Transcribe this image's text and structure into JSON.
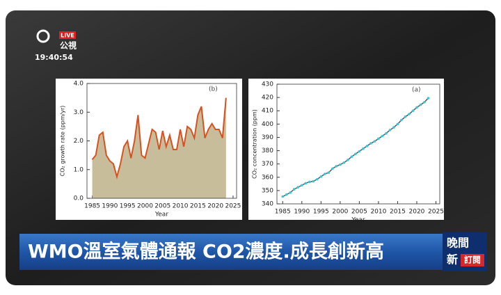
{
  "broadcast": {
    "channel": "公視",
    "live": "LIVE",
    "time": "19:40:54",
    "headline": "WMO溫室氣體通報  CO2濃度.成長創新高",
    "program_top": "晚間",
    "program_bottom": "新",
    "subscribe": "訂閱"
  },
  "chart_data": [
    {
      "type": "area",
      "annotation": "(b)",
      "x_label": "Year",
      "y_label": "CO₂ growth rate (ppm/yr)",
      "x": [
        1985,
        1986,
        1987,
        1988,
        1989,
        1990,
        1991,
        1992,
        1993,
        1994,
        1995,
        1996,
        1997,
        1998,
        1999,
        2000,
        2001,
        2002,
        2003,
        2004,
        2005,
        2006,
        2007,
        2008,
        2009,
        2010,
        2011,
        2012,
        2013,
        2014,
        2015,
        2016,
        2017,
        2018,
        2019,
        2020,
        2021,
        2022,
        2023
      ],
      "series": [
        {
          "color": "#d9501e",
          "fill": "#c8bd9a",
          "values": [
            1.35,
            1.5,
            2.2,
            2.3,
            1.5,
            1.3,
            1.2,
            0.75,
            1.2,
            1.8,
            2.0,
            1.4,
            2.0,
            2.9,
            1.5,
            1.4,
            1.9,
            2.4,
            2.3,
            1.7,
            2.35,
            1.8,
            2.2,
            1.7,
            1.7,
            2.4,
            1.8,
            2.5,
            2.4,
            2.1,
            2.9,
            3.2,
            2.1,
            2.4,
            2.6,
            2.4,
            2.4,
            2.1,
            3.5
          ]
        }
      ],
      "xlim": [
        1983.5,
        2026
      ],
      "xticks": [
        1985,
        1990,
        1995,
        2000,
        2005,
        2010,
        2015,
        2020,
        2025
      ],
      "ylim": [
        0,
        4
      ],
      "yticks": [
        {
          "value": 0,
          "label": "0.0"
        },
        {
          "value": 1,
          "label": "1.0"
        },
        {
          "value": 2,
          "label": "2.0"
        },
        {
          "value": 3,
          "label": "3.0"
        },
        {
          "value": 4,
          "label": "4.0"
        }
      ]
    },
    {
      "type": "line",
      "annotation": "(a)",
      "x_label": "Year",
      "y_label": "CO₂ concentration (ppm)",
      "x": [
        1985,
        1986,
        1987,
        1988,
        1989,
        1990,
        1991,
        1992,
        1993,
        1994,
        1995,
        1996,
        1997,
        1998,
        1999,
        2000,
        2001,
        2002,
        2003,
        2004,
        2005,
        2006,
        2007,
        2008,
        2009,
        2010,
        2011,
        2012,
        2013,
        2014,
        2015,
        2016,
        2017,
        2018,
        2019,
        2020,
        2021,
        2022,
        2023
      ],
      "series": [
        {
          "color": "#555555",
          "marker_color": "#3cc6d8",
          "values": [
            345.5,
            347,
            348.5,
            351,
            352.5,
            354,
            355.5,
            356.5,
            357,
            358.5,
            360.5,
            362.5,
            363.5,
            366.5,
            368.3,
            369.5,
            371,
            373,
            375.5,
            377.5,
            379.5,
            381.5,
            383.5,
            385.5,
            387,
            389,
            391,
            393,
            395.5,
            397.5,
            400,
            403,
            405.5,
            407.5,
            410,
            412.5,
            414.5,
            416.5,
            419.5
          ]
        }
      ],
      "xlim": [
        1983.5,
        2026
      ],
      "xticks": [
        1985,
        1990,
        1995,
        2000,
        2005,
        2010,
        2015,
        2020,
        2025
      ],
      "ylim": [
        340,
        430
      ],
      "yticks": [
        340,
        350,
        360,
        370,
        380,
        390,
        400,
        410,
        420,
        430
      ]
    }
  ]
}
